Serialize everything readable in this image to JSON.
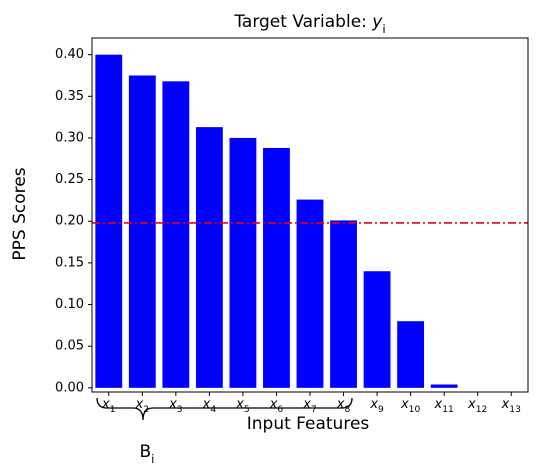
{
  "chart_data": {
    "type": "bar",
    "title": "Target Variable: yi",
    "xlabel": "Input Features",
    "ylabel": "PPS Scores",
    "categories": [
      "x1",
      "x2",
      "x3",
      "x4",
      "x5",
      "x6",
      "x7",
      "x8",
      "x9",
      "x10",
      "x11",
      "x12",
      "x13"
    ],
    "values": [
      0.4,
      0.375,
      0.368,
      0.313,
      0.3,
      0.288,
      0.226,
      0.201,
      0.14,
      0.08,
      0.004,
      0,
      0
    ],
    "color": "#0000ff",
    "threshold": {
      "value": 0.198,
      "color": "#e8000b"
    },
    "annotation": "Bi",
    "ylim": [
      -0.005,
      0.42
    ],
    "yticks": [
      {
        "value": 0,
        "label": "0.00"
      },
      {
        "value": 0.05,
        "label": "0.05"
      },
      {
        "value": 0.1,
        "label": "0.10"
      },
      {
        "value": 0.15,
        "label": "0.15"
      },
      {
        "value": 0.2,
        "label": "0.20"
      },
      {
        "value": 0.25,
        "label": "0.25"
      },
      {
        "value": 0.3,
        "label": "0.30"
      },
      {
        "value": 0.35,
        "label": "0.35"
      },
      {
        "value": 0.4,
        "label": "0.40"
      }
    ],
    "grid": false
  }
}
